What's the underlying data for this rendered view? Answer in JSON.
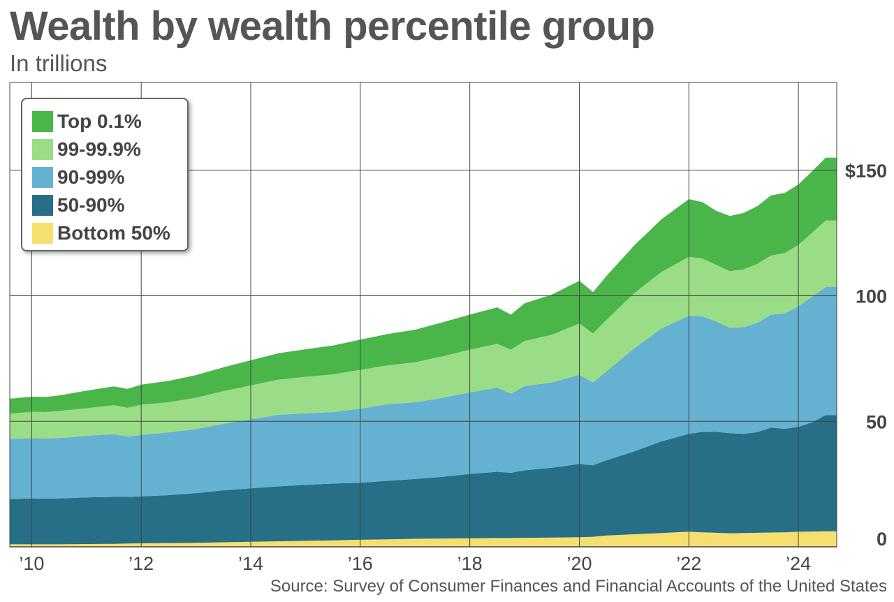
{
  "header": {
    "title": "Wealth by wealth percentile group",
    "subtitle": "In trillions"
  },
  "footer": {
    "source": "Source: Survey of Consumer Finances and Financial Accounts of the United States"
  },
  "chart_data": {
    "type": "area",
    "stacked": true,
    "title": "Wealth by wealth percentile group",
    "subtitle": "In trillions",
    "xlabel": "",
    "ylabel": "",
    "xlim": [
      2009.6,
      2024.7
    ],
    "ylim": [
      0,
      185
    ],
    "x_ticks": [
      2010,
      2012,
      2014,
      2016,
      2018,
      2020,
      2022,
      2024
    ],
    "x_tick_labels": [
      "’10",
      "’12",
      "’14",
      "’16",
      "’18",
      "’20",
      "’22",
      "’24"
    ],
    "y_ticks": [
      0,
      50,
      100,
      150
    ],
    "y_tick_labels": [
      "0",
      "50",
      "100",
      "$150"
    ],
    "grid": true,
    "legend_position": "top-left",
    "x": [
      2009.6,
      2010.0,
      2010.25,
      2010.5,
      2011.0,
      2011.5,
      2011.75,
      2012.0,
      2012.5,
      2013.0,
      2013.5,
      2014.0,
      2014.5,
      2015.0,
      2015.5,
      2016.0,
      2016.5,
      2017.0,
      2017.5,
      2018.0,
      2018.5,
      2018.75,
      2019.0,
      2019.5,
      2020.0,
      2020.25,
      2020.5,
      2021.0,
      2021.5,
      2022.0,
      2022.25,
      2022.5,
      2022.75,
      2023.0,
      2023.25,
      2023.5,
      2023.75,
      2024.0,
      2024.25,
      2024.5
    ],
    "series": [
      {
        "name": "Bottom 50%",
        "color": "#f5df6e",
        "values": [
          1.0,
          1.0,
          1.0,
          1.0,
          1.1,
          1.2,
          1.3,
          1.4,
          1.5,
          1.6,
          1.8,
          2.0,
          2.2,
          2.4,
          2.6,
          2.8,
          3.0,
          3.2,
          3.3,
          3.4,
          3.5,
          3.5,
          3.6,
          3.7,
          3.8,
          4.0,
          4.5,
          5.0,
          5.5,
          6.0,
          5.8,
          5.6,
          5.4,
          5.5,
          5.6,
          5.7,
          5.8,
          6.0,
          6.1,
          6.2
        ]
      },
      {
        "name": "50-90%",
        "color": "#266f86",
        "values": [
          18.0,
          18.3,
          18.2,
          18.3,
          18.6,
          18.7,
          18.6,
          18.7,
          19.1,
          19.8,
          20.7,
          21.3,
          21.9,
          22.3,
          22.6,
          22.7,
          23.3,
          23.8,
          24.6,
          25.6,
          26.4,
          26.0,
          26.9,
          27.8,
          29.2,
          28.5,
          30.0,
          33.0,
          36.5,
          39.0,
          40.0,
          40.2,
          39.9,
          39.5,
          40.1,
          41.8,
          41.2,
          41.8,
          43.5,
          46.3
        ]
      },
      {
        "name": "90-99%",
        "color": "#65b1d1",
        "values": [
          24.0,
          24.0,
          24.0,
          24.0,
          24.5,
          25.0,
          24.0,
          24.5,
          25.0,
          25.5,
          26.5,
          27.5,
          28.5,
          28.5,
          28.5,
          29.5,
          30.5,
          30.5,
          31.5,
          32.5,
          33.5,
          31.5,
          33.5,
          34.0,
          35.5,
          33.0,
          35.5,
          41.0,
          45.0,
          47.0,
          46.0,
          44.0,
          42.0,
          42.5,
          43.5,
          45.0,
          46.0,
          48.0,
          50.0,
          51.0
        ]
      },
      {
        "name": "99-99.9%",
        "color": "#9bdc87",
        "values": [
          10.0,
          10.5,
          10.5,
          10.8,
          11.0,
          11.5,
          11.5,
          12.0,
          12.0,
          12.5,
          13.0,
          13.5,
          14.0,
          14.5,
          15.0,
          15.5,
          15.5,
          16.0,
          16.5,
          17.0,
          17.5,
          17.5,
          18.0,
          19.0,
          20.5,
          19.5,
          20.5,
          22.0,
          22.5,
          23.5,
          23.0,
          22.5,
          22.5,
          23.0,
          23.5,
          23.5,
          24.0,
          24.5,
          25.5,
          26.5
        ]
      },
      {
        "name": "Top 0.1%",
        "color": "#4ab64a",
        "values": [
          6.0,
          6.0,
          6.0,
          6.2,
          7.0,
          7.5,
          7.5,
          8.0,
          8.5,
          9.0,
          9.5,
          10.0,
          10.5,
          11.0,
          11.5,
          12.0,
          12.5,
          13.0,
          13.5,
          14.0,
          14.5,
          14.0,
          15.0,
          16.0,
          17.0,
          16.5,
          17.5,
          19.0,
          21.0,
          23.0,
          22.5,
          21.5,
          22.0,
          22.5,
          23.0,
          24.0,
          24.0,
          24.0,
          24.5,
          25.0
        ]
      }
    ]
  }
}
